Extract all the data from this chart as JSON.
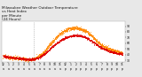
{
  "title_line1": "Milwaukee Weather Outdoor Temperature",
  "title_line2": "vs Heat Index",
  "title_line3": "per Minute",
  "title_line4": "(24 Hours)",
  "title_fontsize": 3.0,
  "bg_color": "#e8e8e8",
  "plot_bg": "#ffffff",
  "temp_color": "#dd0000",
  "heat_color": "#ff8800",
  "ylim": [
    28,
    98
  ],
  "yticks": [
    30,
    40,
    50,
    60,
    70,
    80,
    90
  ],
  "ytick_labels": [
    "30",
    "40",
    "50",
    "60",
    "70",
    "80",
    "90"
  ],
  "vline_x": 96,
  "hours": [
    0,
    1,
    2,
    3,
    4,
    5,
    6,
    7,
    8,
    9,
    10,
    11,
    12,
    13,
    14,
    15,
    16,
    17,
    18,
    19,
    20,
    21,
    22,
    23
  ],
  "temp": [
    38,
    36,
    35,
    34,
    33,
    32,
    33,
    36,
    42,
    50,
    58,
    65,
    70,
    73,
    74,
    73,
    70,
    65,
    58,
    52,
    48,
    45,
    43,
    41
  ],
  "heat": [
    38,
    36,
    35,
    34,
    33,
    32,
    33,
    38,
    46,
    58,
    68,
    77,
    83,
    86,
    87,
    85,
    81,
    74,
    64,
    57,
    52,
    49,
    46,
    43
  ],
  "tick_fontsize": 2.2,
  "scatter_size": 0.3,
  "n_minutes": 1440
}
